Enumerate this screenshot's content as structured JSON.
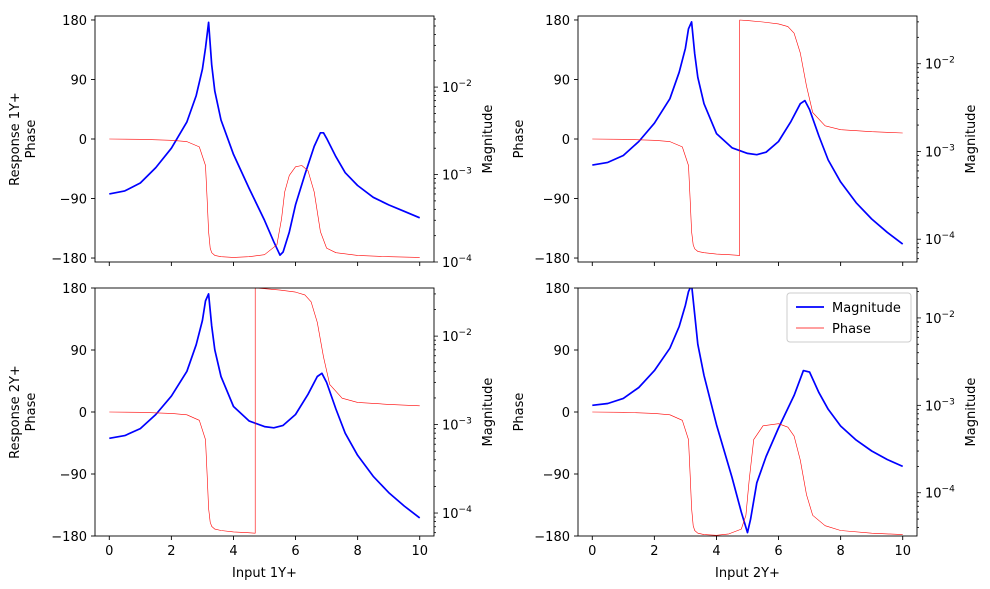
{
  "figure": {
    "colors": {
      "magnitude": "#0000ff",
      "phase": "#ff0000",
      "axes": "#000000"
    },
    "legend": {
      "magnitude_label": "Magnitude",
      "phase_label": "Phase",
      "placement": "upper-right of bottom-right panel"
    }
  },
  "chart_data": [
    {
      "type": "line",
      "title": "",
      "xlabel": "",
      "ylabel_lines": [
        "Response 1Y+",
        "Phase"
      ],
      "ylabel_right": "Magnitude",
      "xlim": [
        0,
        10
      ],
      "xticks": [
        0,
        2,
        4,
        6,
        8,
        10
      ],
      "xticklabels_visible": false,
      "phase_ylim": [
        -186,
        186
      ],
      "phase_ticks": [
        180,
        90,
        0,
        -90,
        -180
      ],
      "phase_ticklabels": [
        "180",
        "90",
        "0",
        "−90",
        "−180"
      ],
      "mag_log_lim": [
        0.0001,
        0.065
      ],
      "mag_ticks": [
        0.01,
        0.001,
        0.0001
      ],
      "mag_ticklabels": [
        "10",
        "10",
        "10"
      ],
      "mag_tick_exponents": [
        "−2",
        "−3",
        "−4"
      ],
      "series": [
        {
          "name": "Magnitude",
          "x": [
            0,
            0.5,
            1,
            1.5,
            2,
            2.5,
            2.8,
            3,
            3.1,
            3.2,
            3.3,
            3.4,
            3.6,
            4,
            4.5,
            5,
            5.3,
            5.5,
            5.6,
            5.8,
            6,
            6.3,
            6.6,
            6.8,
            6.9,
            7,
            7.3,
            7.6,
            8,
            8.5,
            9,
            9.5,
            10
          ],
          "values": [
            0.0006,
            0.00065,
            0.0008,
            0.0012,
            0.002,
            0.004,
            0.008,
            0.016,
            0.028,
            0.055,
            0.018,
            0.009,
            0.0042,
            0.0017,
            0.0007,
            0.0003,
            0.00017,
            0.00012,
            0.00013,
            0.00022,
            0.00045,
            0.001,
            0.0021,
            0.003,
            0.003,
            0.0026,
            0.0016,
            0.00105,
            0.00075,
            0.00055,
            0.00045,
            0.00038,
            0.00032
          ]
        },
        {
          "name": "Phase",
          "x": [
            0,
            1,
            2,
            2.5,
            2.9,
            3.1,
            3.15,
            3.2,
            3.25,
            3.3,
            3.4,
            3.6,
            4,
            4.5,
            5,
            5.4,
            5.55,
            5.65,
            5.8,
            6,
            6.2,
            6.4,
            6.6,
            6.8,
            7,
            7.3,
            8,
            9,
            10
          ],
          "values": [
            0,
            -0.5,
            -2,
            -4,
            -12,
            -40,
            -90,
            -140,
            -165,
            -172,
            -176,
            -178,
            -179,
            -178,
            -175,
            -160,
            -120,
            -80,
            -55,
            -42,
            -40,
            -48,
            -80,
            -140,
            -165,
            -172,
            -176,
            -178,
            -179
          ]
        }
      ]
    },
    {
      "type": "line",
      "title": "",
      "xlabel": "",
      "ylabel_lines": [
        "Phase"
      ],
      "ylabel_right": "Magnitude",
      "xlim": [
        0,
        10
      ],
      "xticks": [
        0,
        2,
        4,
        6,
        8,
        10
      ],
      "xticklabels_visible": false,
      "phase_ylim": [
        -186,
        186
      ],
      "phase_ticks": [
        180,
        90,
        0,
        -90,
        -180
      ],
      "phase_ticklabels": [
        "180",
        "90",
        "0",
        "−90",
        "−180"
      ],
      "mag_log_lim": [
        5.5e-05,
        0.035
      ],
      "mag_ticks": [
        0.01,
        0.001,
        0.0001
      ],
      "mag_ticklabels": [
        "10",
        "10",
        "10"
      ],
      "mag_tick_exponents": [
        "−2",
        "−3",
        "−4"
      ],
      "series": [
        {
          "name": "Magnitude",
          "x": [
            0,
            0.5,
            1,
            1.5,
            2,
            2.5,
            2.8,
            3,
            3.1,
            3.2,
            3.3,
            3.4,
            3.6,
            4,
            4.5,
            5,
            5.3,
            5.6,
            6,
            6.4,
            6.7,
            6.85,
            7,
            7.3,
            7.6,
            8,
            8.5,
            9,
            9.5,
            10
          ],
          "values": [
            0.0007,
            0.00075,
            0.0009,
            0.0013,
            0.0021,
            0.004,
            0.008,
            0.015,
            0.025,
            0.03,
            0.013,
            0.007,
            0.0035,
            0.0016,
            0.0011,
            0.00095,
            0.00092,
            0.00098,
            0.0013,
            0.0022,
            0.0035,
            0.0038,
            0.003,
            0.0015,
            0.0008,
            0.00045,
            0.00026,
            0.00017,
            0.00012,
            8.8e-05
          ]
        },
        {
          "name": "Phase",
          "x": [
            0,
            1,
            2,
            2.5,
            2.9,
            3.1,
            3.15,
            3.2,
            3.25,
            3.3,
            3.4,
            3.6,
            4,
            4.4,
            4.75,
            4.75,
            5,
            5.5,
            6,
            6.3,
            6.5,
            6.7,
            6.9,
            7.1,
            7.5,
            8,
            9,
            10
          ],
          "values": [
            0,
            -0.5,
            -2,
            -4,
            -12,
            -40,
            -90,
            -140,
            -160,
            -166,
            -170,
            -172,
            -174,
            -175,
            -176,
            180,
            179,
            177,
            174,
            170,
            160,
            130,
            80,
            40,
            20,
            14,
            11,
            9
          ]
        }
      ]
    },
    {
      "type": "line",
      "title": "",
      "xlabel": "Input 1Y+",
      "ylabel_lines": [
        "Response 2Y+",
        "Phase"
      ],
      "ylabel_right": "Magnitude",
      "xlim": [
        0,
        10
      ],
      "xticks": [
        0,
        2,
        4,
        6,
        8,
        10
      ],
      "xticklabels_visible": true,
      "xticklabels": [
        "0",
        "2",
        "4",
        "6",
        "8",
        "10"
      ],
      "phase_ylim": [
        -180,
        180
      ],
      "phase_ticks": [
        180,
        90,
        0,
        -90,
        -180
      ],
      "phase_ticklabels": [
        "180",
        "90",
        "0",
        "−90",
        "−180"
      ],
      "mag_log_lim": [
        5.5e-05,
        0.035
      ],
      "mag_ticks": [
        0.01,
        0.001,
        0.0001
      ],
      "mag_ticklabels": [
        "10",
        "10",
        "10"
      ],
      "mag_tick_exponents": [
        "−2",
        "−3",
        "−4"
      ],
      "series": [
        {
          "name": "Magnitude",
          "x": [
            0,
            0.5,
            1,
            1.5,
            2,
            2.5,
            2.8,
            3,
            3.1,
            3.2,
            3.3,
            3.4,
            3.6,
            4,
            4.5,
            5,
            5.3,
            5.6,
            6,
            6.4,
            6.7,
            6.85,
            7,
            7.3,
            7.6,
            8,
            8.5,
            9,
            9.5,
            10
          ],
          "values": [
            0.0007,
            0.00075,
            0.0009,
            0.0013,
            0.0021,
            0.004,
            0.008,
            0.015,
            0.025,
            0.03,
            0.013,
            0.007,
            0.0035,
            0.0016,
            0.0011,
            0.00095,
            0.00092,
            0.00098,
            0.0013,
            0.0022,
            0.0035,
            0.0038,
            0.003,
            0.0015,
            0.0008,
            0.00045,
            0.00026,
            0.00017,
            0.00012,
            8.8e-05
          ]
        },
        {
          "name": "Phase",
          "x": [
            0,
            1,
            2,
            2.5,
            2.9,
            3.1,
            3.15,
            3.2,
            3.25,
            3.3,
            3.4,
            3.6,
            4,
            4.4,
            4.7,
            4.7,
            5,
            5.5,
            6,
            6.3,
            6.5,
            6.7,
            6.9,
            7.1,
            7.5,
            8,
            9,
            10
          ],
          "values": [
            0,
            -0.5,
            -2,
            -4,
            -12,
            -40,
            -90,
            -140,
            -160,
            -166,
            -170,
            -172,
            -174,
            -175,
            -176,
            180,
            179,
            177,
            174,
            170,
            160,
            130,
            80,
            40,
            20,
            14,
            11,
            9
          ]
        }
      ]
    },
    {
      "type": "line",
      "title": "",
      "xlabel": "Input 2Y+",
      "ylabel_lines": [
        "Phase"
      ],
      "ylabel_right": "Magnitude",
      "xlim": [
        0,
        10
      ],
      "xticks": [
        0,
        2,
        4,
        6,
        8,
        10
      ],
      "xticklabels_visible": true,
      "xticklabels": [
        "0",
        "2",
        "4",
        "6",
        "8",
        "10"
      ],
      "phase_ylim": [
        -180,
        180
      ],
      "phase_ticks": [
        180,
        90,
        0,
        -90,
        -180
      ],
      "phase_ticklabels": [
        "180",
        "90",
        "0",
        "−90",
        "−180"
      ],
      "mag_log_lim": [
        3.2e-05,
        0.022
      ],
      "mag_ticks": [
        0.01,
        0.001,
        0.0001
      ],
      "mag_ticklabels": [
        "10",
        "10",
        "10"
      ],
      "mag_tick_exponents": [
        "−2",
        "−3",
        "−4"
      ],
      "legend": true,
      "series": [
        {
          "name": "Magnitude",
          "x": [
            0,
            0.5,
            1,
            1.5,
            2,
            2.5,
            2.8,
            3,
            3.1,
            3.2,
            3.3,
            3.4,
            3.6,
            4,
            4.5,
            4.8,
            5,
            5.1,
            5.3,
            5.6,
            6,
            6.5,
            6.8,
            7,
            7.3,
            7.6,
            8,
            8.5,
            9,
            9.5,
            10
          ],
          "values": [
            0.001,
            0.00105,
            0.0012,
            0.0016,
            0.0025,
            0.0045,
            0.008,
            0.014,
            0.02,
            0.024,
            0.011,
            0.005,
            0.0022,
            0.0006,
            0.00015,
            6e-05,
            3.5e-05,
            5e-05,
            0.00013,
            0.00026,
            0.00055,
            0.0013,
            0.0025,
            0.0024,
            0.0014,
            0.0009,
            0.00058,
            0.0004,
            0.0003,
            0.00024,
            0.0002
          ]
        },
        {
          "name": "Phase",
          "x": [
            0,
            1,
            2,
            2.5,
            2.9,
            3.1,
            3.15,
            3.2,
            3.25,
            3.3,
            3.4,
            3.6,
            4,
            4.4,
            4.8,
            4.95,
            5.05,
            5.2,
            5.5,
            6,
            6.3,
            6.5,
            6.7,
            6.9,
            7.1,
            7.5,
            8,
            9,
            10
          ],
          "values": [
            0,
            -0.5,
            -2,
            -4,
            -12,
            -40,
            -90,
            -140,
            -165,
            -172,
            -176,
            -178,
            -179,
            -177,
            -170,
            -150,
            -100,
            -40,
            -20,
            -17,
            -22,
            -35,
            -70,
            -120,
            -150,
            -165,
            -172,
            -176,
            -178
          ]
        }
      ]
    }
  ]
}
